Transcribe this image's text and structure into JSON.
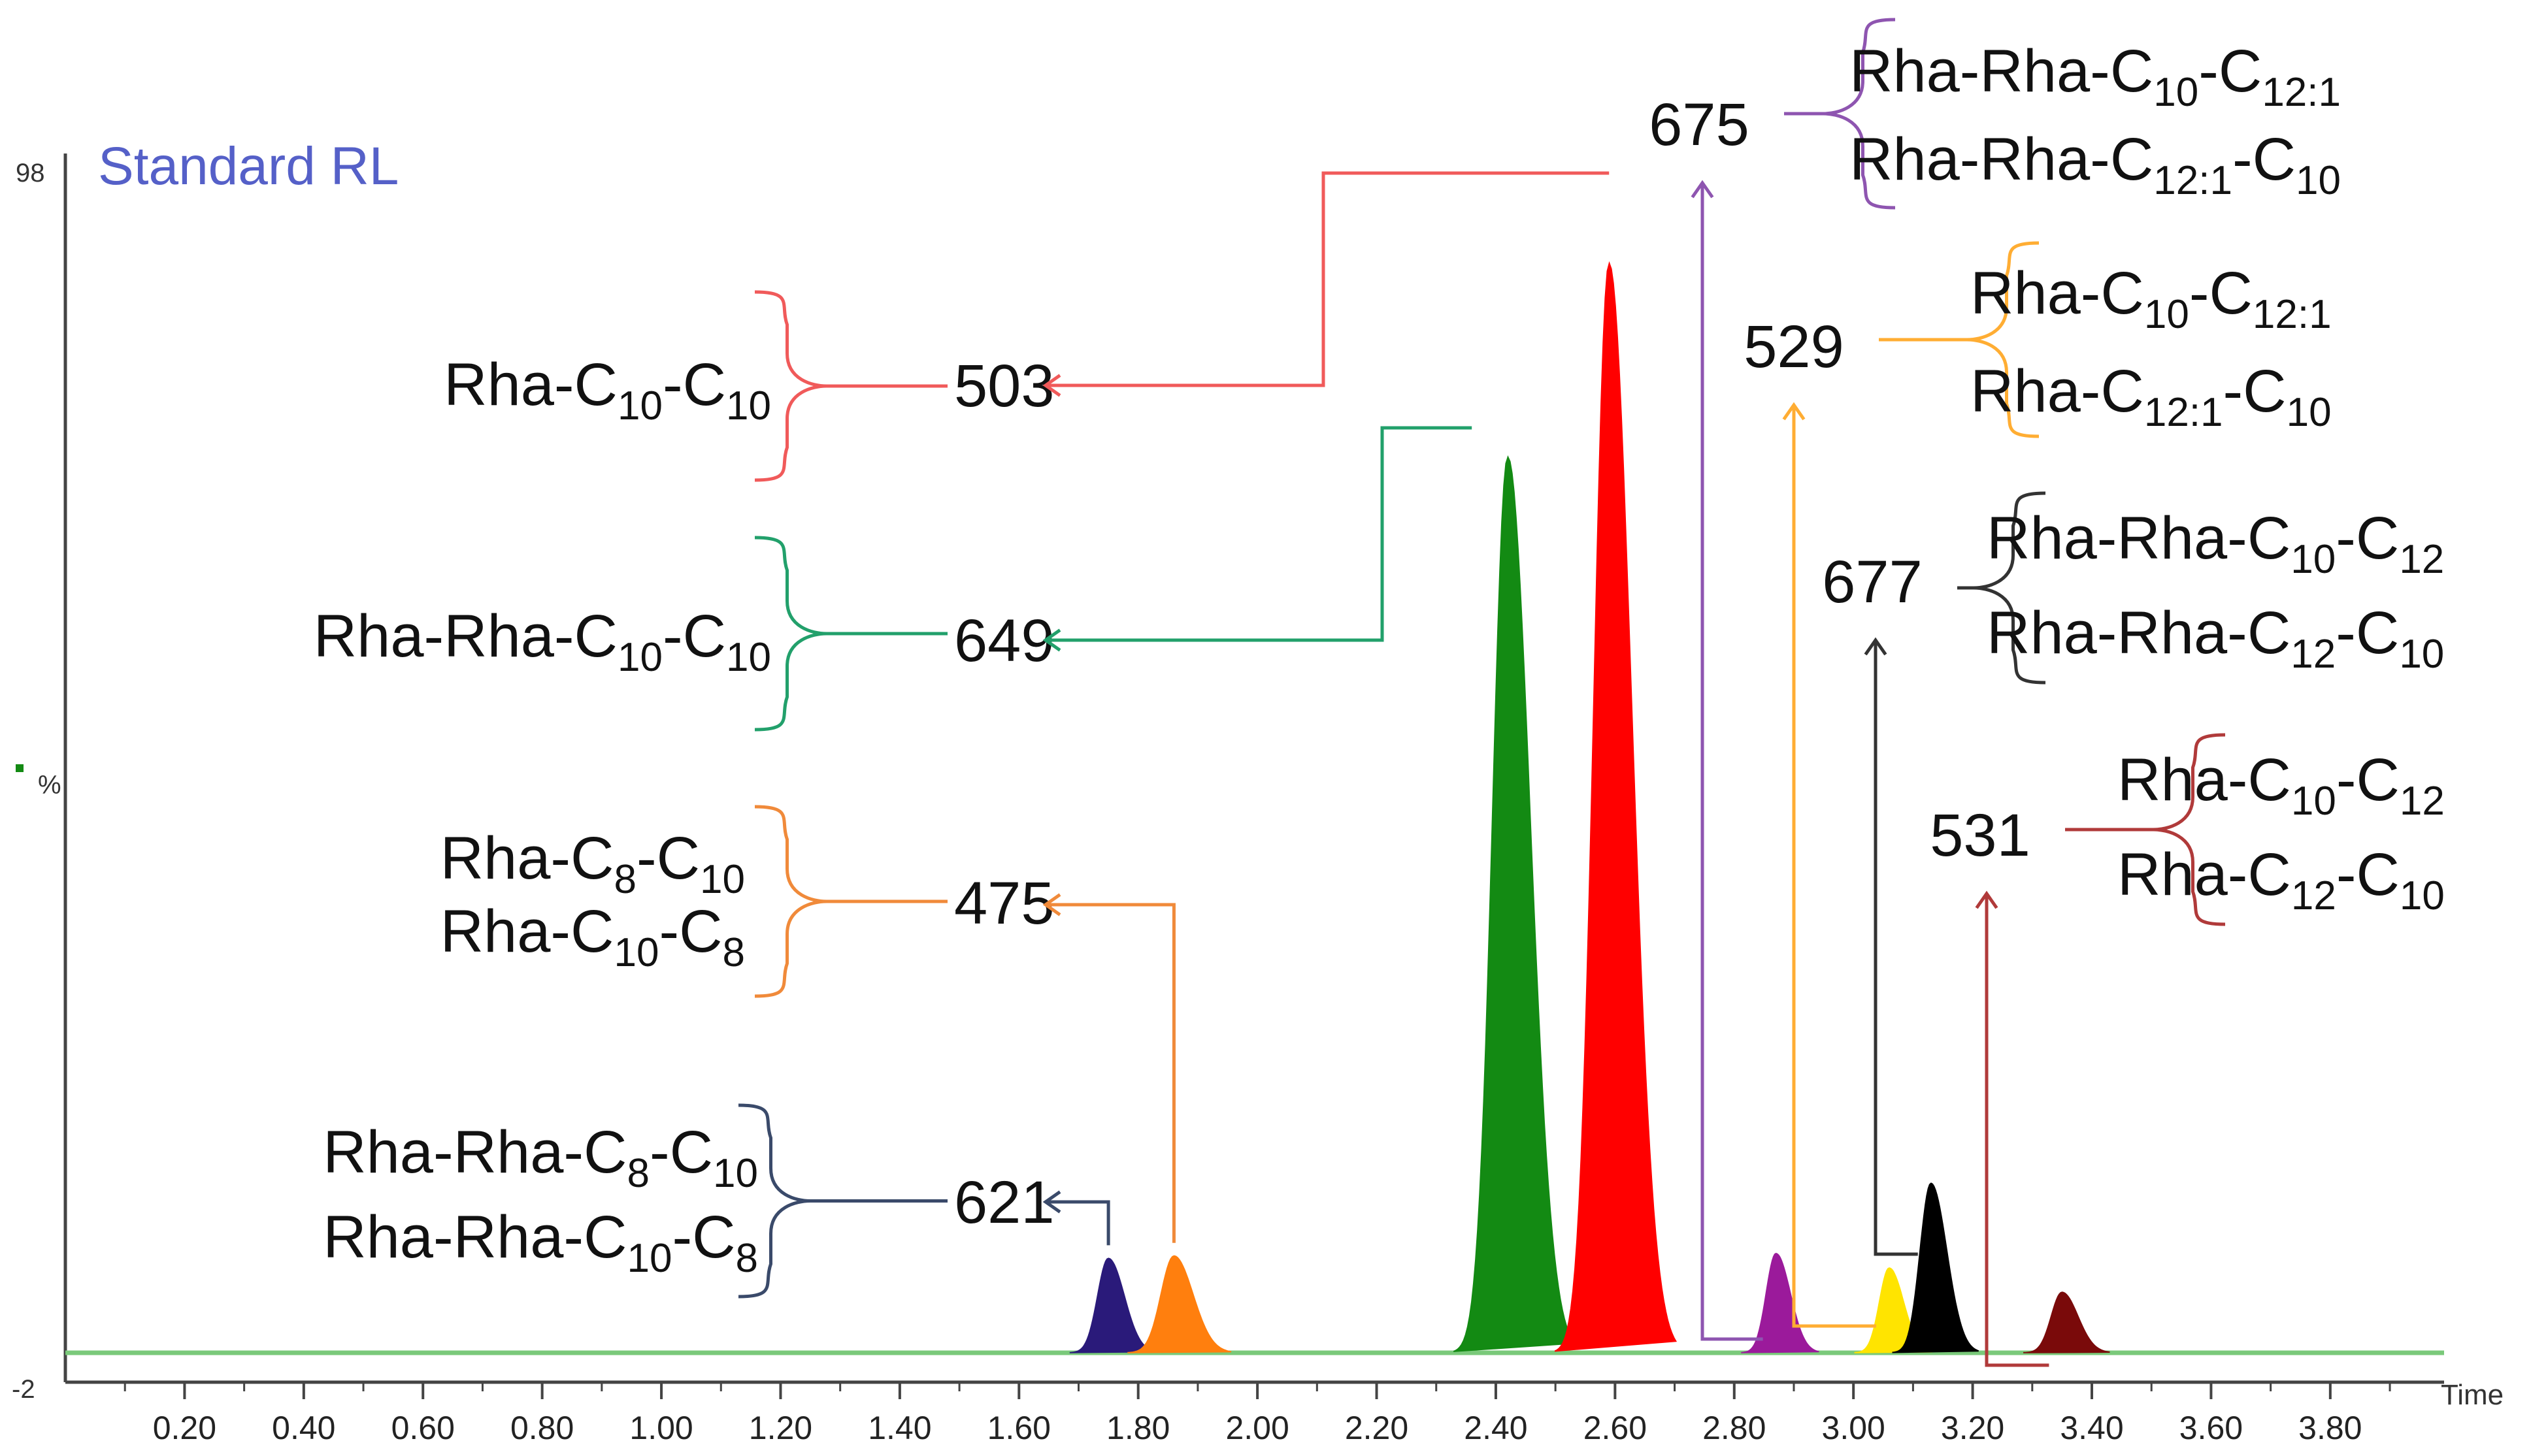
{
  "chart_data": {
    "type": "line",
    "title": "Standard RL",
    "xlabel": "Time",
    "ylabel": "%",
    "xlim": [
      0.0,
      3.98
    ],
    "ylim": [
      -2,
      98
    ],
    "x_ticks": [
      "0.20",
      "0.40",
      "0.60",
      "0.80",
      "1.00",
      "1.20",
      "1.40",
      "1.60",
      "1.80",
      "2.00",
      "2.20",
      "2.40",
      "2.60",
      "2.80",
      "3.00",
      "3.20",
      "3.40",
      "3.60",
      "3.80"
    ],
    "y_tick_labels": {
      "top": "98",
      "bottom": "-2"
    },
    "grid": false,
    "baseline_color": "#7ac97a",
    "axis_color": "#444444",
    "title_color": "#5560c8",
    "peaks": [
      {
        "mz": "621",
        "rt": 1.75,
        "height": 7.8,
        "width": 0.05,
        "color": "#2a1a7a"
      },
      {
        "mz": "475",
        "rt": 1.86,
        "height": 8.0,
        "width": 0.06,
        "color": "#ff7f0e"
      },
      {
        "mz": "649",
        "rt": 2.42,
        "height": 74.0,
        "width": 0.07,
        "color": "#138a13"
      },
      {
        "mz": "503",
        "rt": 2.59,
        "height": 90.0,
        "width": 0.07,
        "color": "#ff0000"
      },
      {
        "mz": "675",
        "rt": 2.87,
        "height": 8.2,
        "width": 0.045,
        "color": "#9b1a9b"
      },
      {
        "mz": "529",
        "rt": 3.06,
        "height": 7.0,
        "width": 0.045,
        "color": "#ffe400"
      },
      {
        "mz": "677",
        "rt": 3.13,
        "height": 14.0,
        "width": 0.05,
        "color": "#000000"
      },
      {
        "mz": "531",
        "rt": 3.35,
        "height": 5.0,
        "width": 0.05,
        "color": "#7a0a0a"
      }
    ]
  },
  "annotations": [
    {
      "mz": "503",
      "color": "#f05a5a",
      "labels": [
        [
          "Rha-C",
          "10",
          "-C",
          "10"
        ]
      ]
    },
    {
      "mz": "649",
      "color": "#22a06b",
      "labels": [
        [
          "Rha-Rha-C",
          "10",
          "-C",
          "10"
        ]
      ]
    },
    {
      "mz": "475",
      "color": "#f08a3a",
      "labels": [
        [
          "Rha-C",
          "8",
          "-C",
          "10"
        ],
        [
          "Rha-C",
          "10",
          "-C",
          "8"
        ]
      ]
    },
    {
      "mz": "621",
      "color": "#3a4a6a",
      "labels": [
        [
          "Rha-Rha-C",
          "8",
          "-C",
          "10"
        ],
        [
          "Rha-Rha-C",
          "10",
          "-C",
          "8"
        ]
      ]
    },
    {
      "mz": "675",
      "color": "#8e55b0",
      "labels": [
        [
          "Rha-Rha-C",
          "10",
          "-C",
          "12:1"
        ],
        [
          "Rha-Rha-C",
          "12:1",
          "-C",
          "10"
        ]
      ]
    },
    {
      "mz": "529",
      "color": "#ffad33",
      "labels": [
        [
          "Rha-C",
          "10",
          "-C",
          "12:1"
        ],
        [
          "Rha-C",
          "12:1",
          "-C",
          "10"
        ]
      ]
    },
    {
      "mz": "677",
      "color": "#333333",
      "labels": [
        [
          "Rha-Rha-C",
          "10",
          "-C",
          "12"
        ],
        [
          "Rha-Rha-C",
          "12",
          "-C",
          "10"
        ]
      ]
    },
    {
      "mz": "531",
      "color": "#b03a3a",
      "labels": [
        [
          "Rha-C",
          "10",
          "-C",
          "12"
        ],
        [
          "Rha-C",
          "12",
          "-C",
          "10"
        ]
      ]
    }
  ]
}
